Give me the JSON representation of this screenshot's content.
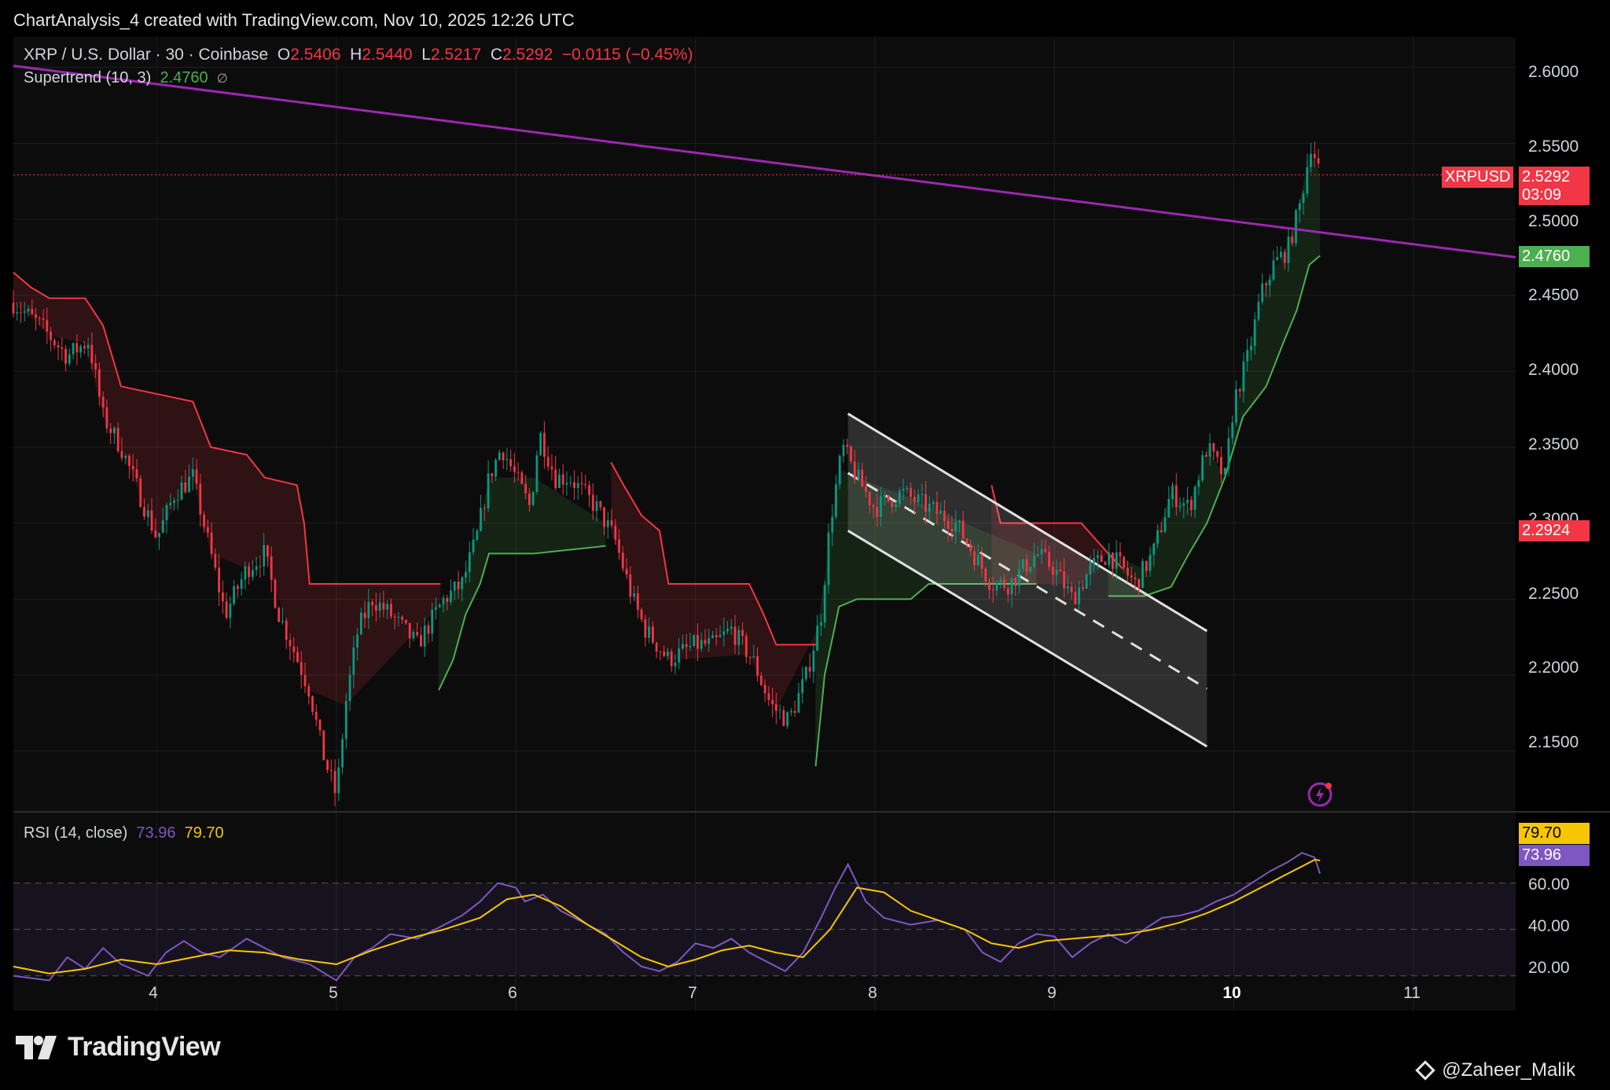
{
  "header": {
    "title": "ChartAnalysis_4 created with TradingView.com, Nov 10, 2025 12:26 UTC"
  },
  "legend": {
    "symbol": "XRP / U.S. Dollar · 30 · Coinbase",
    "o_label": "O",
    "o_value": "2.5406",
    "h_label": "H",
    "h_value": "2.5440",
    "l_label": "L",
    "l_value": "2.5217",
    "c_label": "C",
    "c_value": "2.5292",
    "change": "−0.0115 (−0.45%)",
    "supertrend_label": "Supertrend (10, 3)",
    "supertrend_value": "2.4760",
    "eye_icon": "∅"
  },
  "rsi_legend": {
    "label": "RSI (14, close)",
    "rsi_value": "73.96",
    "ma_value": "79.70"
  },
  "price_axis": [
    "2.6000",
    "2.5500",
    "2.5000",
    "2.4500",
    "2.4000",
    "2.3500",
    "2.3000",
    "2.2500",
    "2.2000",
    "2.1500"
  ],
  "rsi_axis": [
    "60.00",
    "40.00",
    "20.00"
  ],
  "time_axis": [
    "4",
    "5",
    "6",
    "7",
    "8",
    "9",
    "10",
    "11"
  ],
  "tags": {
    "symbol_tag": "XRPUSD",
    "last_price": "2.5292",
    "countdown": "03:09",
    "supertrend_tag": "2.4760",
    "level_tag": "2.2924",
    "rsi_ma_tag": "79.70",
    "rsi_tag": "73.96"
  },
  "colors": {
    "up": "#089981",
    "down": "#f23645",
    "trendline": "#9c27b0",
    "supertrend_up": "#4caf50",
    "supertrend_down": "#f23645",
    "rsi": "#7e57c2",
    "rsi_ma": "#f7c600",
    "channel": "#e0e0e0"
  },
  "footer": {
    "logo_text": "TradingView",
    "credit": "@Zaheer_Malik"
  },
  "chart_data": {
    "type": "candlestick",
    "title": "XRP / U.S. Dollar · 30 · Coinbase",
    "ylim": [
      2.11,
      2.62
    ],
    "x_range_days": [
      3.2,
      11.57
    ],
    "price_path": [
      [
        3.2,
        2.445
      ],
      [
        3.35,
        2.43
      ],
      [
        3.5,
        2.41
      ],
      [
        3.62,
        2.42
      ],
      [
        3.7,
        2.37
      ],
      [
        3.8,
        2.35
      ],
      [
        3.9,
        2.32
      ],
      [
        4.0,
        2.29
      ],
      [
        4.1,
        2.32
      ],
      [
        4.2,
        2.33
      ],
      [
        4.3,
        2.28
      ],
      [
        4.38,
        2.24
      ],
      [
        4.5,
        2.27
      ],
      [
        4.6,
        2.28
      ],
      [
        4.68,
        2.24
      ],
      [
        4.75,
        2.22
      ],
      [
        4.85,
        2.19
      ],
      [
        4.92,
        2.15
      ],
      [
        5.0,
        2.12
      ],
      [
        5.05,
        2.18
      ],
      [
        5.12,
        2.23
      ],
      [
        5.2,
        2.25
      ],
      [
        5.3,
        2.24
      ],
      [
        5.45,
        2.22
      ],
      [
        5.6,
        2.25
      ],
      [
        5.7,
        2.26
      ],
      [
        5.78,
        2.29
      ],
      [
        5.85,
        2.33
      ],
      [
        5.92,
        2.35
      ],
      [
        6.0,
        2.33
      ],
      [
        6.08,
        2.31
      ],
      [
        6.13,
        2.36
      ],
      [
        6.22,
        2.33
      ],
      [
        6.3,
        2.33
      ],
      [
        6.45,
        2.31
      ],
      [
        6.55,
        2.29
      ],
      [
        6.6,
        2.27
      ],
      [
        6.65,
        2.25
      ],
      [
        6.72,
        2.23
      ],
      [
        6.85,
        2.21
      ],
      [
        7.0,
        2.22
      ],
      [
        7.1,
        2.22
      ],
      [
        7.2,
        2.23
      ],
      [
        7.32,
        2.21
      ],
      [
        7.42,
        2.18
      ],
      [
        7.52,
        2.17
      ],
      [
        7.62,
        2.2
      ],
      [
        7.7,
        2.24
      ],
      [
        7.75,
        2.3
      ],
      [
        7.82,
        2.35
      ],
      [
        7.9,
        2.33
      ],
      [
        8.0,
        2.31
      ],
      [
        8.15,
        2.32
      ],
      [
        8.3,
        2.31
      ],
      [
        8.45,
        2.3
      ],
      [
        8.55,
        2.28
      ],
      [
        8.65,
        2.26
      ],
      [
        8.75,
        2.26
      ],
      [
        8.9,
        2.28
      ],
      [
        9.0,
        2.27
      ],
      [
        9.1,
        2.25
      ],
      [
        9.2,
        2.27
      ],
      [
        9.3,
        2.28
      ],
      [
        9.38,
        2.27
      ],
      [
        9.45,
        2.26
      ],
      [
        9.55,
        2.28
      ],
      [
        9.65,
        2.32
      ],
      [
        9.75,
        2.31
      ],
      [
        9.85,
        2.35
      ],
      [
        9.95,
        2.33
      ],
      [
        10.0,
        2.38
      ],
      [
        10.08,
        2.41
      ],
      [
        10.15,
        2.45
      ],
      [
        10.22,
        2.47
      ],
      [
        10.3,
        2.48
      ],
      [
        10.37,
        2.51
      ],
      [
        10.43,
        2.55
      ],
      [
        10.48,
        2.53
      ]
    ],
    "supertrend_up_segments": [
      [
        [
          5.57,
          2.19
        ],
        [
          5.65,
          2.21
        ],
        [
          5.72,
          2.24
        ],
        [
          5.8,
          2.26
        ],
        [
          5.85,
          2.28
        ],
        [
          6.1,
          2.28
        ],
        [
          6.5,
          2.285
        ]
      ],
      [
        [
          7.67,
          2.14
        ],
        [
          7.72,
          2.2
        ],
        [
          7.8,
          2.245
        ],
        [
          7.9,
          2.25
        ],
        [
          8.2,
          2.25
        ],
        [
          8.3,
          2.26
        ],
        [
          8.9,
          2.26
        ]
      ],
      [
        [
          9.3,
          2.252
        ],
        [
          9.5,
          2.252
        ],
        [
          9.65,
          2.258
        ],
        [
          9.75,
          2.28
        ],
        [
          9.85,
          2.3
        ],
        [
          9.95,
          2.33
        ],
        [
          10.05,
          2.37
        ],
        [
          10.18,
          2.39
        ],
        [
          10.28,
          2.42
        ],
        [
          10.35,
          2.44
        ],
        [
          10.42,
          2.47
        ],
        [
          10.48,
          2.476
        ]
      ]
    ],
    "supertrend_down_segments": [
      [
        [
          3.2,
          2.465
        ],
        [
          3.3,
          2.455
        ],
        [
          3.4,
          2.448
        ],
        [
          3.6,
          2.448
        ],
        [
          3.7,
          2.43
        ],
        [
          3.8,
          2.39
        ],
        [
          4.0,
          2.385
        ],
        [
          4.2,
          2.38
        ],
        [
          4.3,
          2.35
        ],
        [
          4.5,
          2.345
        ],
        [
          4.6,
          2.33
        ],
        [
          4.78,
          2.325
        ],
        [
          4.82,
          2.3
        ],
        [
          4.85,
          2.26
        ],
        [
          5.05,
          2.26
        ],
        [
          5.58,
          2.26
        ]
      ],
      [
        [
          6.53,
          2.34
        ],
        [
          6.6,
          2.325
        ],
        [
          6.7,
          2.305
        ],
        [
          6.8,
          2.295
        ],
        [
          6.85,
          2.26
        ],
        [
          7.3,
          2.26
        ],
        [
          7.38,
          2.24
        ],
        [
          7.45,
          2.22
        ],
        [
          7.68,
          2.22
        ]
      ],
      [
        [
          8.65,
          2.325
        ],
        [
          8.7,
          2.3
        ],
        [
          9.15,
          2.3
        ],
        [
          9.3,
          2.28
        ],
        [
          9.38,
          2.27
        ]
      ]
    ],
    "trendline": [
      [
        3.2,
        2.601
      ],
      [
        11.57,
        2.475
      ]
    ],
    "channel": {
      "upper": [
        [
          7.85,
          2.372
        ],
        [
          9.85,
          2.229
        ]
      ],
      "lower": [
        [
          7.85,
          2.295
        ],
        [
          9.85,
          2.153
        ]
      ],
      "mid": [
        [
          7.85,
          2.333
        ],
        [
          9.85,
          2.191
        ]
      ]
    },
    "horizontal_level": 2.2924,
    "last_price_line": 2.5292,
    "rsi": {
      "ylim": [
        15,
        100
      ],
      "levels": [
        70,
        50,
        30
      ],
      "rsi_path": [
        [
          3.2,
          30
        ],
        [
          3.4,
          28
        ],
        [
          3.5,
          38
        ],
        [
          3.6,
          33
        ],
        [
          3.7,
          42
        ],
        [
          3.8,
          35
        ],
        [
          3.95,
          30
        ],
        [
          4.05,
          40
        ],
        [
          4.15,
          45
        ],
        [
          4.25,
          40
        ],
        [
          4.35,
          38
        ],
        [
          4.5,
          46
        ],
        [
          4.6,
          42
        ],
        [
          4.7,
          38
        ],
        [
          4.85,
          35
        ],
        [
          5.0,
          28
        ],
        [
          5.1,
          38
        ],
        [
          5.2,
          42
        ],
        [
          5.3,
          48
        ],
        [
          5.45,
          46
        ],
        [
          5.6,
          52
        ],
        [
          5.7,
          56
        ],
        [
          5.8,
          62
        ],
        [
          5.9,
          70
        ],
        [
          6.0,
          68
        ],
        [
          6.05,
          62
        ],
        [
          6.15,
          65
        ],
        [
          6.25,
          58
        ],
        [
          6.4,
          52
        ],
        [
          6.5,
          48
        ],
        [
          6.6,
          40
        ],
        [
          6.7,
          34
        ],
        [
          6.8,
          32
        ],
        [
          6.9,
          36
        ],
        [
          7.0,
          44
        ],
        [
          7.1,
          42
        ],
        [
          7.2,
          46
        ],
        [
          7.3,
          40
        ],
        [
          7.4,
          36
        ],
        [
          7.5,
          32
        ],
        [
          7.6,
          40
        ],
        [
          7.7,
          55
        ],
        [
          7.78,
          68
        ],
        [
          7.85,
          78
        ],
        [
          7.95,
          62
        ],
        [
          8.05,
          55
        ],
        [
          8.2,
          52
        ],
        [
          8.35,
          54
        ],
        [
          8.5,
          50
        ],
        [
          8.6,
          40
        ],
        [
          8.7,
          36
        ],
        [
          8.8,
          44
        ],
        [
          8.9,
          48
        ],
        [
          9.0,
          47
        ],
        [
          9.1,
          38
        ],
        [
          9.2,
          44
        ],
        [
          9.3,
          48
        ],
        [
          9.4,
          44
        ],
        [
          9.5,
          50
        ],
        [
          9.6,
          55
        ],
        [
          9.7,
          56
        ],
        [
          9.8,
          58
        ],
        [
          9.9,
          62
        ],
        [
          10.0,
          65
        ],
        [
          10.1,
          70
        ],
        [
          10.2,
          75
        ],
        [
          10.3,
          79
        ],
        [
          10.38,
          83
        ],
        [
          10.45,
          81
        ],
        [
          10.48,
          74
        ]
      ],
      "ma_path": [
        [
          3.2,
          34
        ],
        [
          3.4,
          31
        ],
        [
          3.6,
          33
        ],
        [
          3.8,
          37
        ],
        [
          4.0,
          35
        ],
        [
          4.2,
          38
        ],
        [
          4.4,
          41
        ],
        [
          4.6,
          40
        ],
        [
          4.8,
          37
        ],
        [
          5.0,
          35
        ],
        [
          5.2,
          41
        ],
        [
          5.4,
          46
        ],
        [
          5.6,
          50
        ],
        [
          5.8,
          55
        ],
        [
          5.95,
          63
        ],
        [
          6.1,
          65
        ],
        [
          6.25,
          60
        ],
        [
          6.4,
          52
        ],
        [
          6.55,
          45
        ],
        [
          6.7,
          38
        ],
        [
          6.85,
          34
        ],
        [
          7.0,
          37
        ],
        [
          7.15,
          41
        ],
        [
          7.3,
          43
        ],
        [
          7.45,
          40
        ],
        [
          7.6,
          38
        ],
        [
          7.75,
          50
        ],
        [
          7.9,
          68
        ],
        [
          8.05,
          66
        ],
        [
          8.2,
          58
        ],
        [
          8.35,
          54
        ],
        [
          8.5,
          50
        ],
        [
          8.65,
          44
        ],
        [
          8.8,
          42
        ],
        [
          8.95,
          45
        ],
        [
          9.1,
          46
        ],
        [
          9.25,
          47
        ],
        [
          9.4,
          48
        ],
        [
          9.55,
          50
        ],
        [
          9.7,
          53
        ],
        [
          9.85,
          57
        ],
        [
          10.0,
          62
        ],
        [
          10.15,
          68
        ],
        [
          10.3,
          74
        ],
        [
          10.45,
          80
        ],
        [
          10.48,
          79.7
        ]
      ]
    }
  }
}
